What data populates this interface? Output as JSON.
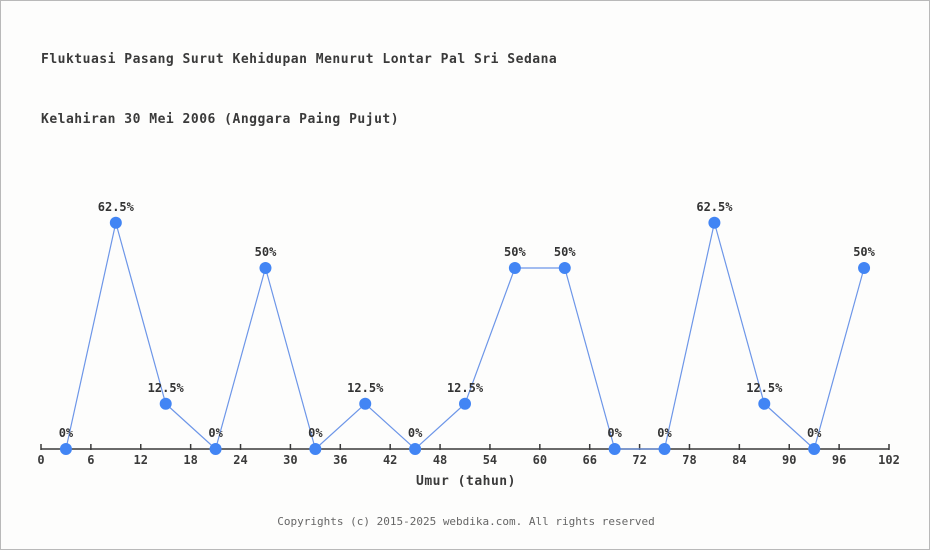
{
  "page": {
    "title_line1": "Fluktuasi Pasang Surut Kehidupan Menurut Lontar Pal Sri Sedana",
    "title_line2": "Kelahiran 30 Mei 2006 (Anggara Paing Pujut)",
    "footer": "Copyrights (c) 2015-2025 webdika.com. All rights reserved"
  },
  "chart_data": {
    "type": "line",
    "title": "Fluktuasi Pasang Surut Kehidupan Menurut Lontar Pal Sri Sedana Kelahiran 30 Mei 2006 (Anggara Paing Pujut)",
    "xlabel": "Umur (tahun)",
    "ylabel": "",
    "x": [
      3,
      9,
      15,
      21,
      27,
      33,
      39,
      45,
      51,
      57,
      63,
      69,
      75,
      81,
      87,
      93,
      99
    ],
    "values": [
      0,
      62.5,
      12.5,
      0,
      50,
      0,
      12.5,
      0,
      12.5,
      50,
      50,
      0,
      0,
      62.5,
      12.5,
      0,
      50
    ],
    "point_labels": [
      "0%",
      "62.5%",
      "12.5%",
      "0%",
      "50%",
      "0%",
      "12.5%",
      "0%",
      "12.5%",
      "50%",
      "50%",
      "0%",
      "0%",
      "62.5%",
      "12.5%",
      "0%",
      "50%"
    ],
    "x_ticks": [
      0,
      6,
      12,
      18,
      24,
      30,
      36,
      42,
      48,
      54,
      60,
      66,
      72,
      78,
      84,
      90,
      96,
      102
    ],
    "xlim": [
      0,
      102
    ],
    "ylim": [
      0,
      100
    ],
    "grid": false,
    "legend": false,
    "colors": {
      "line": "#6d96e8",
      "marker": "#4285f4",
      "axis": "#3a3a3a",
      "tick_label": "#3a3a3a",
      "point_label": "#333333"
    }
  }
}
